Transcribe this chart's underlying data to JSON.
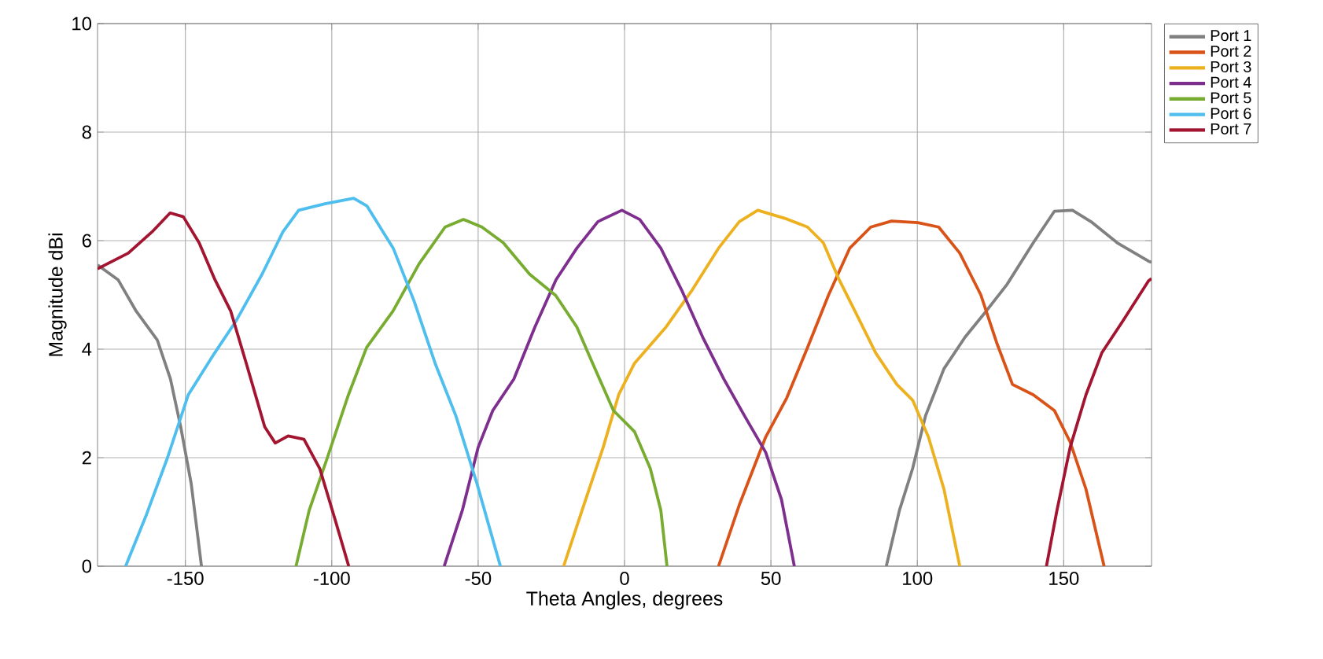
{
  "chart_data": {
    "type": "line",
    "xlabel": "Theta Angles, degrees",
    "ylabel": "Magnitude dBi",
    "xlim": [
      -180,
      180
    ],
    "xticks": [
      -150,
      -100,
      -50,
      0,
      50,
      100,
      150
    ],
    "ylim": [
      0,
      10
    ],
    "yticks": [
      0,
      2,
      4,
      6,
      8,
      10
    ],
    "grid": true,
    "legend": "top right",
    "marker": "none",
    "line_style": "solid",
    "series": [
      {
        "name": "Port 1",
        "color": "#808080",
        "x": [
          -180,
          -179.4,
          -173,
          -166.8,
          -159.6,
          -155.1,
          -151.6,
          -148,
          -144.5,
          0,
          89.4,
          93.9,
          98.4,
          102.8,
          109.1,
          116.3,
          123.5,
          130.6,
          139.6,
          146.8,
          153,
          159.3,
          168.3,
          179,
          180
        ],
        "values": [
          5.55,
          5.53,
          5.28,
          4.7,
          4.17,
          3.45,
          2.57,
          1.52,
          0,
          null,
          0,
          1.03,
          1.8,
          2.77,
          3.64,
          4.22,
          4.7,
          5.19,
          5.96,
          6.54,
          6.56,
          6.35,
          5.96,
          5.62,
          5.6
        ]
      },
      {
        "name": "Port 2",
        "color": "#d95319",
        "x": [
          32.1,
          39.2,
          48.2,
          55.4,
          62.5,
          69.7,
          76.9,
          84.1,
          91.2,
          100.2,
          107.3,
          114.5,
          121.7,
          127.1,
          132.5,
          139.6,
          146.8,
          152.2,
          157.6,
          163.8
        ],
        "values": [
          0,
          1.13,
          2.38,
          3.1,
          4.03,
          5.0,
          5.86,
          6.25,
          6.36,
          6.33,
          6.25,
          5.77,
          5.0,
          4.12,
          3.35,
          3.16,
          2.87,
          2.29,
          1.42,
          0
        ]
      },
      {
        "name": "Port 3",
        "color": "#edb120",
        "x": [
          -20.8,
          -14.5,
          -7.3,
          -2.0,
          3.4,
          14.2,
          23.1,
          32.1,
          39.2,
          45.5,
          55.4,
          62.5,
          67.9,
          73.3,
          78.7,
          85.8,
          93,
          98.4,
          103.8,
          109.1,
          114.5
        ],
        "values": [
          0,
          1.03,
          2.19,
          3.16,
          3.74,
          4.41,
          5.09,
          5.86,
          6.35,
          6.56,
          6.4,
          6.25,
          5.96,
          5.28,
          4.7,
          3.93,
          3.35,
          3.06,
          2.38,
          1.42,
          0
        ]
      },
      {
        "name": "Port 4",
        "color": "#7e2f8e",
        "x": [
          -61.6,
          -55.4,
          -50,
          -45,
          -37.8,
          -30.6,
          -23.4,
          -16.3,
          -9.1,
          -0.9,
          5.2,
          12.4,
          19.5,
          26.7,
          33.9,
          41,
          48.2,
          53.6,
          58
        ],
        "values": [
          0,
          1.03,
          2.19,
          2.87,
          3.45,
          4.41,
          5.28,
          5.86,
          6.35,
          6.56,
          6.39,
          5.86,
          5.09,
          4.22,
          3.45,
          2.77,
          2.1,
          1.23,
          0
        ]
      },
      {
        "name": "Port 5",
        "color": "#77ac30",
        "x": [
          -112.2,
          -107.7,
          -101.5,
          -94.3,
          -88.1,
          -79.1,
          -70.2,
          -61.3,
          -55,
          -48.7,
          -41.4,
          -32.4,
          -23.5,
          -16.3,
          -10.9,
          -3.8,
          3.4,
          8.8,
          12.4,
          14.5
        ],
        "values": [
          0,
          1.03,
          2.0,
          3.16,
          4.03,
          4.7,
          5.57,
          6.25,
          6.39,
          6.25,
          5.96,
          5.38,
          4.99,
          4.41,
          3.74,
          2.87,
          2.48,
          1.8,
          1.03,
          0
        ]
      },
      {
        "name": "Port 6",
        "color": "#4dbeee",
        "x": [
          -170.4,
          -163.3,
          -156.1,
          -149,
          -140,
          -132.8,
          -123.8,
          -116.7,
          -111.3,
          -102.3,
          -92.5,
          -88,
          -79,
          -71.9,
          -64.7,
          -57.6,
          -50.4,
          -42.4
        ],
        "values": [
          0,
          0.95,
          2.0,
          3.16,
          3.93,
          4.51,
          5.38,
          6.16,
          6.56,
          6.68,
          6.78,
          6.64,
          5.86,
          4.89,
          3.74,
          2.77,
          1.52,
          0
        ]
      },
      {
        "name": "Port 7",
        "color": "#a2142f",
        "x": [
          -180,
          -169.5,
          -161.4,
          -155.2,
          -150.7,
          -145.3,
          -139.9,
          -134.5,
          -129.2,
          -122.9,
          -119.3,
          -114.9,
          -109.5,
          -104.1,
          -98.7,
          -94.2,
          0,
          144.1,
          147.7,
          152.2,
          157.6,
          163,
          170.1,
          179,
          180
        ],
        "values": [
          5.48,
          5.77,
          6.16,
          6.51,
          6.44,
          5.96,
          5.28,
          4.7,
          3.74,
          2.57,
          2.27,
          2.4,
          2.34,
          1.8,
          0.83,
          0,
          null,
          0,
          1.03,
          2.19,
          3.16,
          3.93,
          4.51,
          5.26,
          5.3
        ]
      }
    ]
  }
}
